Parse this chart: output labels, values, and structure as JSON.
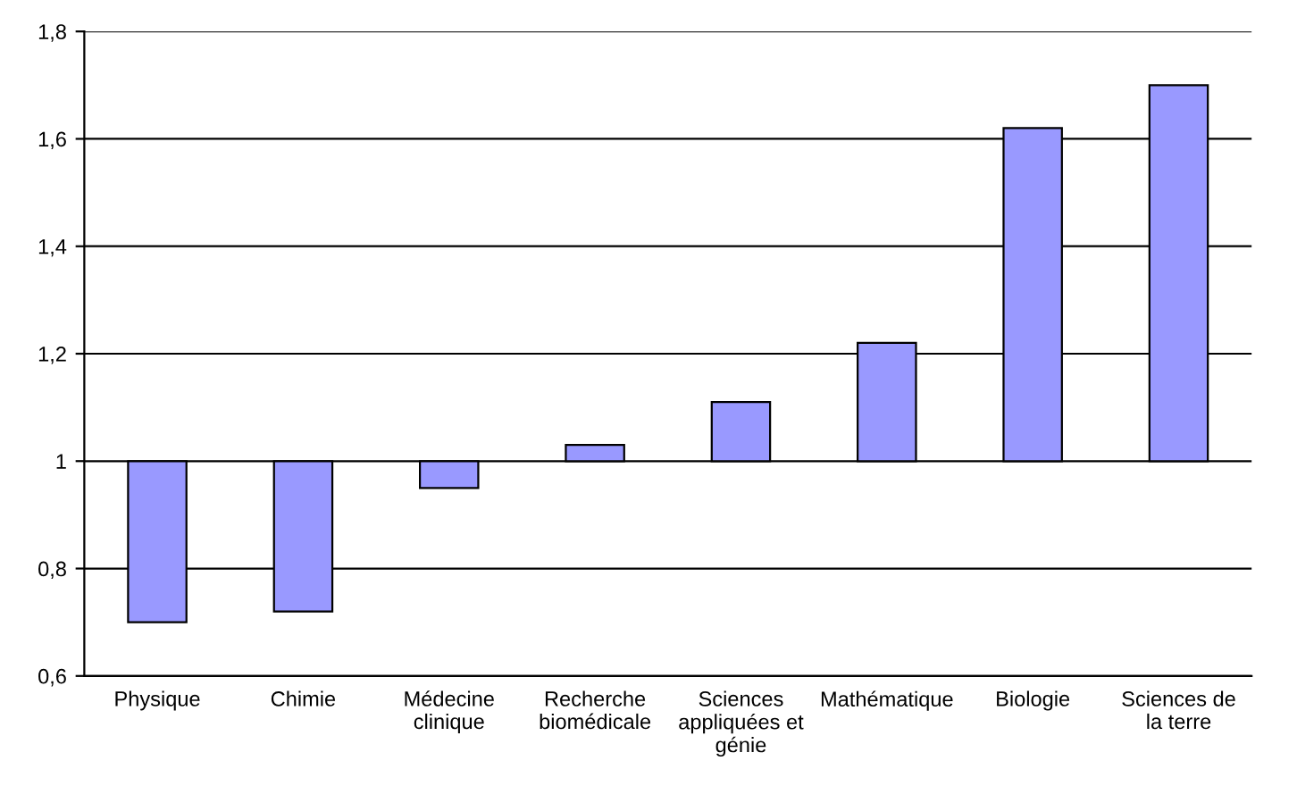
{
  "chart_data": {
    "type": "bar",
    "categories": [
      "Physique",
      "Chimie",
      "Médecine\nclinique",
      "Recherche\nbiomédicale",
      "Sciences\nappliquées et\ngénie",
      "Mathématique",
      "Biologie",
      "Sciences de\nla terre"
    ],
    "base": [
      1,
      1,
      1,
      1,
      1,
      1,
      1,
      1
    ],
    "values": [
      -0.3,
      -0.28,
      -0.05,
      0.03,
      0.11,
      0.22,
      0.62,
      0.7
    ],
    "color": "#9999ff",
    "ylim": [
      0.6,
      1.8
    ],
    "yticks": [
      {
        "value": 0.6,
        "label": "0,6"
      },
      {
        "value": 0.8,
        "label": "0,8"
      },
      1,
      {
        "value": 1.2,
        "label": "1,2"
      },
      {
        "value": 1.4,
        "label": "1,4"
      },
      {
        "value": 1.6,
        "label": "1,6"
      },
      {
        "value": 1.8,
        "label": "1,8"
      }
    ],
    "grid": "y"
  }
}
